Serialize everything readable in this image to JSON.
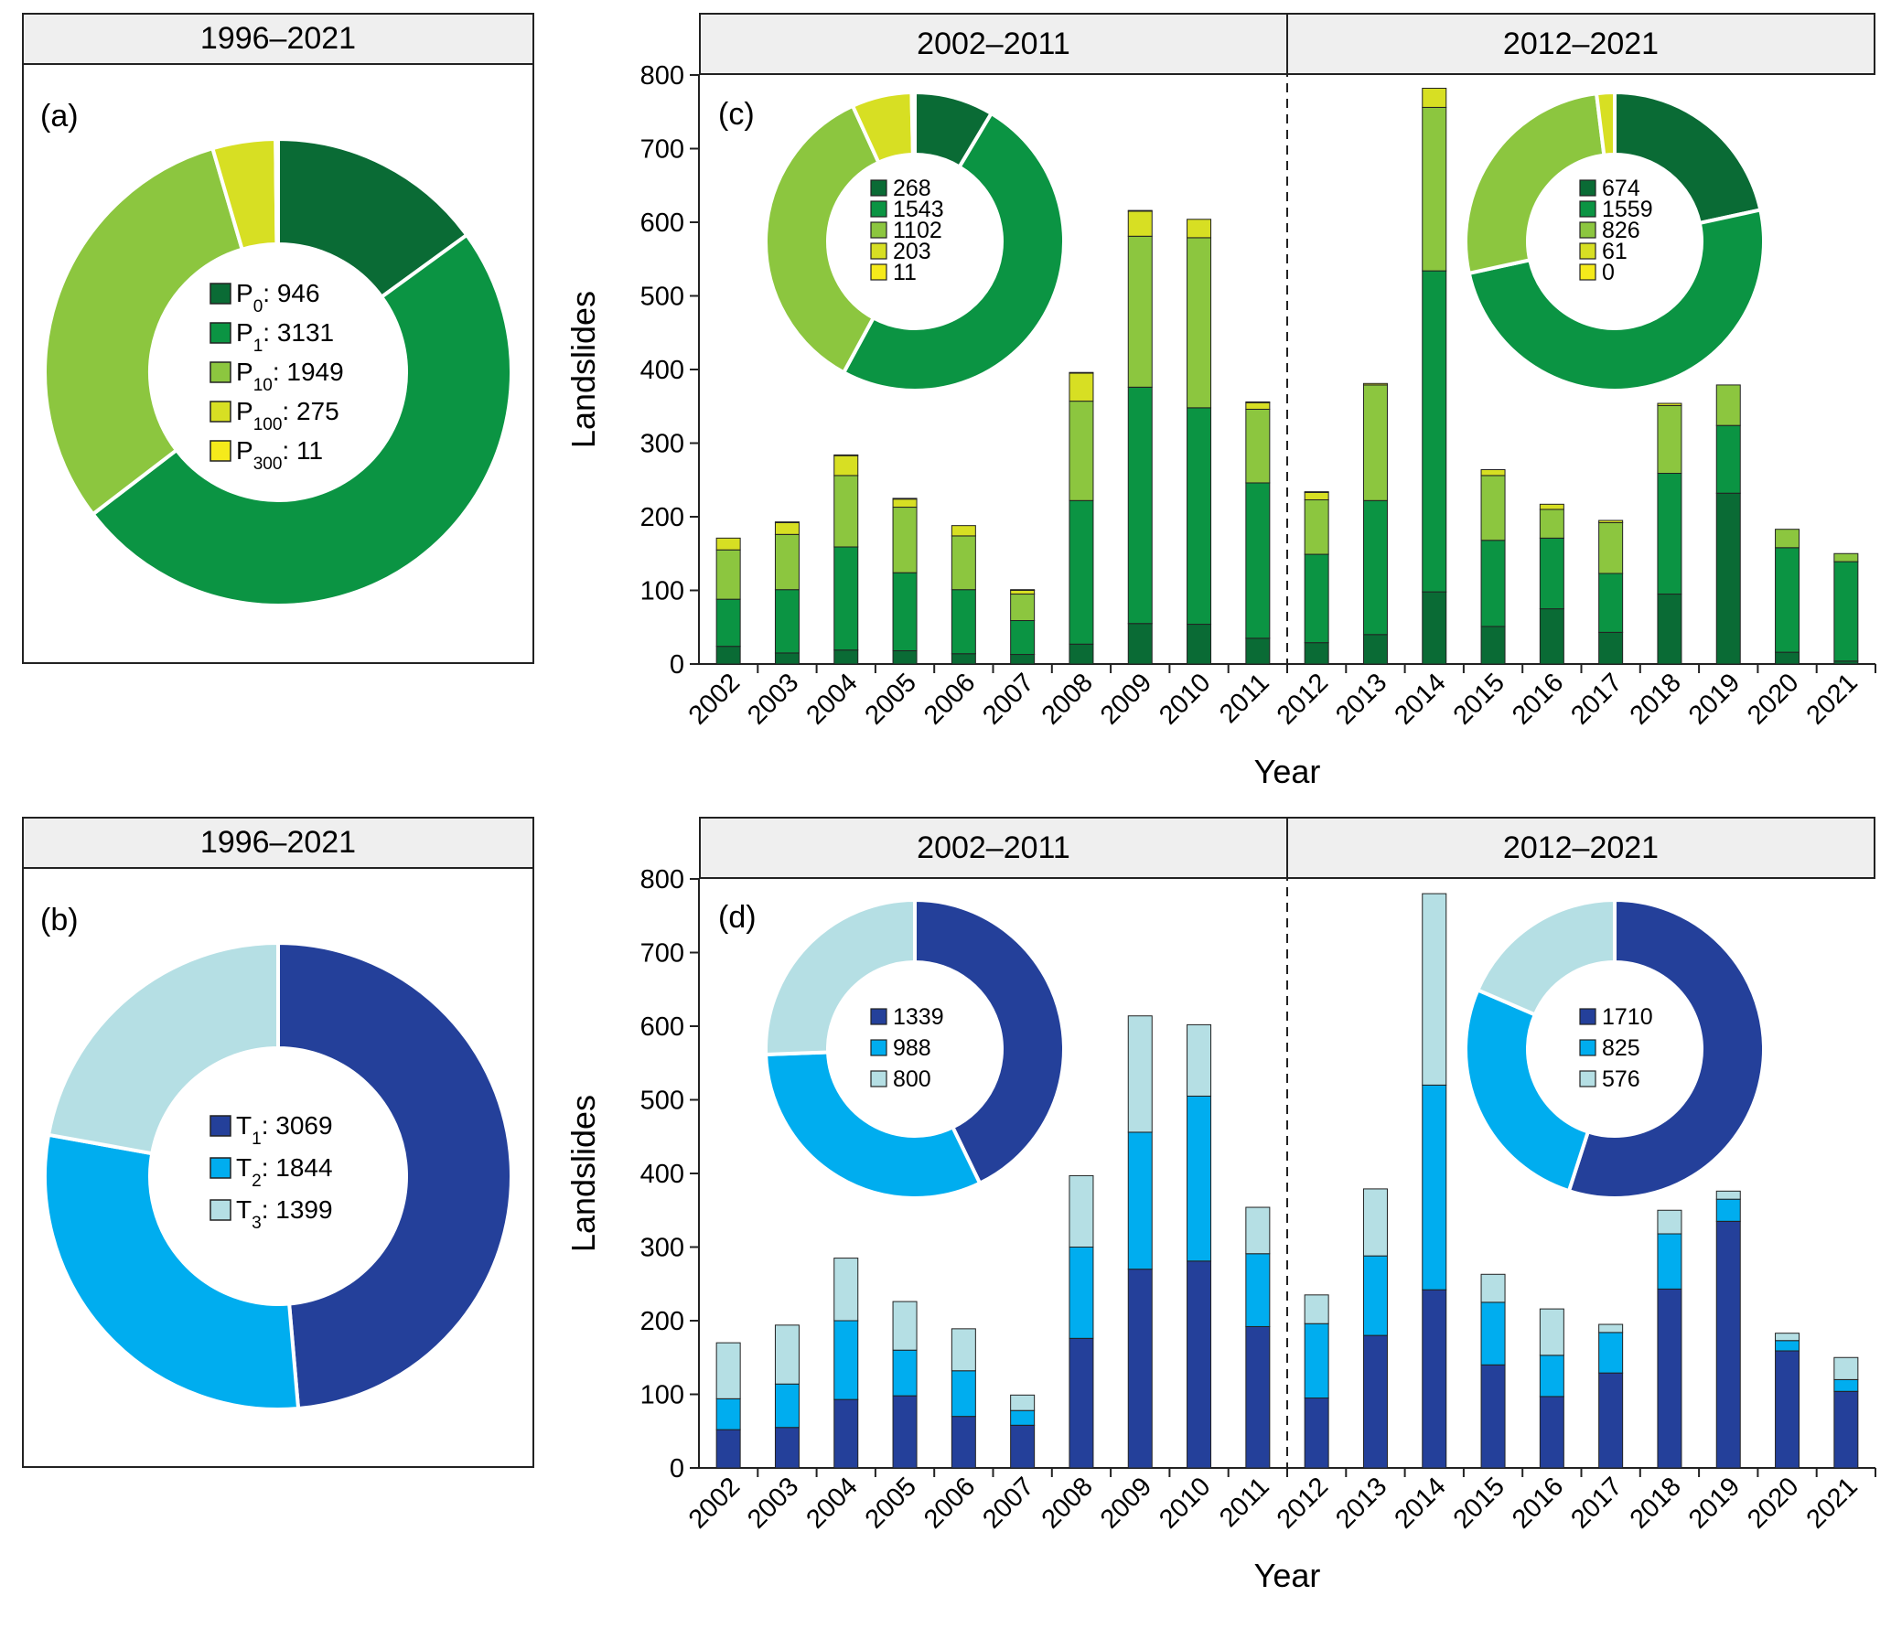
{
  "colors": {
    "P0": "#0a6b35",
    "P1": "#0b9443",
    "P10": "#8cc63f",
    "P100": "#d7df23",
    "P300": "#f5ea1b",
    "T1": "#24409a",
    "T2": "#00adef",
    "T3": "#b5dfe4"
  },
  "panel_a": {
    "letter": "(a)",
    "header": "1996–2021",
    "legend": [
      {
        "base": "P",
        "sub": "0",
        "value": "946",
        "key": "P0"
      },
      {
        "base": "P",
        "sub": "1",
        "value": "3131",
        "key": "P1"
      },
      {
        "base": "P",
        "sub": "10",
        "value": "1949",
        "key": "P10"
      },
      {
        "base": "P",
        "sub": "100",
        "value": "275",
        "key": "P100"
      },
      {
        "base": "P",
        "sub": "300",
        "value": "11",
        "key": "P300"
      }
    ]
  },
  "panel_b": {
    "letter": "(b)",
    "header": "1996–2021",
    "legend": [
      {
        "base": "T",
        "sub": "1",
        "value": "3069",
        "key": "T1"
      },
      {
        "base": "T",
        "sub": "2",
        "value": "1844",
        "key": "T2"
      },
      {
        "base": "T",
        "sub": "3",
        "value": "1399",
        "key": "T3"
      }
    ]
  },
  "panel_c": {
    "letter": "(c)",
    "header_left": "2002–2011",
    "header_right": "2012–2021",
    "inset_left": [
      "268",
      "1543",
      "1102",
      "203",
      "11"
    ],
    "inset_right": [
      "674",
      "1559",
      "826",
      "61",
      "0"
    ]
  },
  "panel_d": {
    "letter": "(d)",
    "header_left": "2002–2011",
    "header_right": "2012–2021",
    "inset_left": [
      "1339",
      "988",
      "800"
    ],
    "inset_right": [
      "1710",
      "825",
      "576"
    ]
  },
  "chart_data": [
    {
      "id": "a",
      "type": "pie",
      "title": "1996–2021",
      "labels": [
        "P0",
        "P1",
        "P10",
        "P100",
        "P300"
      ],
      "values": [
        946,
        3131,
        1949,
        275,
        11
      ]
    },
    {
      "id": "b",
      "type": "pie",
      "title": "1996–2021",
      "labels": [
        "T1",
        "T2",
        "T3"
      ],
      "values": [
        3069,
        1844,
        1399
      ]
    },
    {
      "id": "c",
      "type": "bar",
      "stacked": true,
      "xlabel": "Year",
      "ylabel": "Landslides",
      "ylim": [
        0,
        800
      ],
      "yticks": [
        "0",
        "100",
        "200",
        "300",
        "400",
        "500",
        "600",
        "700",
        "800"
      ],
      "categories": [
        "2002",
        "2003",
        "2004",
        "2005",
        "2006",
        "2007",
        "2008",
        "2009",
        "2010",
        "2011",
        "2012",
        "2013",
        "2014",
        "2015",
        "2016",
        "2017",
        "2018",
        "2019",
        "2020",
        "2021"
      ],
      "series": [
        {
          "name": "P0",
          "values": [
            24,
            15,
            19,
            18,
            14,
            13,
            27,
            55,
            54,
            35,
            29,
            40,
            98,
            51,
            75,
            43,
            95,
            232,
            16,
            4
          ]
        },
        {
          "name": "P1",
          "values": [
            64,
            86,
            140,
            106,
            87,
            46,
            195,
            321,
            294,
            211,
            120,
            182,
            436,
            117,
            96,
            80,
            164,
            92,
            142,
            135
          ]
        },
        {
          "name": "P10",
          "values": [
            67,
            75,
            97,
            89,
            73,
            36,
            135,
            205,
            231,
            100,
            74,
            157,
            222,
            88,
            39,
            69,
            92,
            55,
            25,
            11
          ]
        },
        {
          "name": "P100",
          "values": [
            16,
            16,
            27,
            11,
            14,
            5,
            38,
            34,
            25,
            9,
            10,
            2,
            26,
            8,
            7,
            3,
            3,
            0,
            0,
            0
          ]
        },
        {
          "name": "P300",
          "values": [
            0,
            1,
            1,
            1,
            0,
            1,
            1,
            1,
            0,
            1,
            1,
            0,
            0,
            0,
            0,
            0,
            0,
            0,
            0,
            0
          ]
        }
      ],
      "insets": [
        {
          "period": "2002–2011",
          "labels": [
            "P0",
            "P1",
            "P10",
            "P100",
            "P300"
          ],
          "values": [
            268,
            1543,
            1102,
            203,
            11
          ]
        },
        {
          "period": "2012–2021",
          "labels": [
            "P0",
            "P1",
            "P10",
            "P100",
            "P300"
          ],
          "values": [
            674,
            1559,
            826,
            61,
            0
          ]
        }
      ]
    },
    {
      "id": "d",
      "type": "bar",
      "stacked": true,
      "xlabel": "Year",
      "ylabel": "Landslides",
      "ylim": [
        0,
        800
      ],
      "yticks": [
        "0",
        "100",
        "200",
        "300",
        "400",
        "500",
        "600",
        "700",
        "800"
      ],
      "categories": [
        "2002",
        "2003",
        "2004",
        "2005",
        "2006",
        "2007",
        "2008",
        "2009",
        "2010",
        "2011",
        "2012",
        "2013",
        "2014",
        "2015",
        "2016",
        "2017",
        "2018",
        "2019",
        "2020",
        "2021"
      ],
      "series": [
        {
          "name": "T1",
          "values": [
            52,
            55,
            93,
            98,
            70,
            58,
            176,
            270,
            281,
            192,
            95,
            180,
            242,
            140,
            97,
            129,
            243,
            335,
            159,
            104
          ]
        },
        {
          "name": "T2",
          "values": [
            42,
            59,
            107,
            62,
            62,
            20,
            124,
            186,
            224,
            99,
            101,
            108,
            278,
            85,
            56,
            55,
            75,
            30,
            14,
            16
          ]
        },
        {
          "name": "T3",
          "values": [
            76,
            80,
            85,
            66,
            57,
            21,
            97,
            158,
            97,
            63,
            39,
            91,
            260,
            38,
            63,
            11,
            32,
            11,
            10,
            30
          ]
        }
      ],
      "insets": [
        {
          "period": "2002–2011",
          "labels": [
            "T1",
            "T2",
            "T3"
          ],
          "values": [
            1339,
            988,
            800
          ]
        },
        {
          "period": "2012–2021",
          "labels": [
            "T1",
            "T2",
            "T3"
          ],
          "values": [
            1710,
            825,
            576
          ]
        }
      ]
    }
  ]
}
